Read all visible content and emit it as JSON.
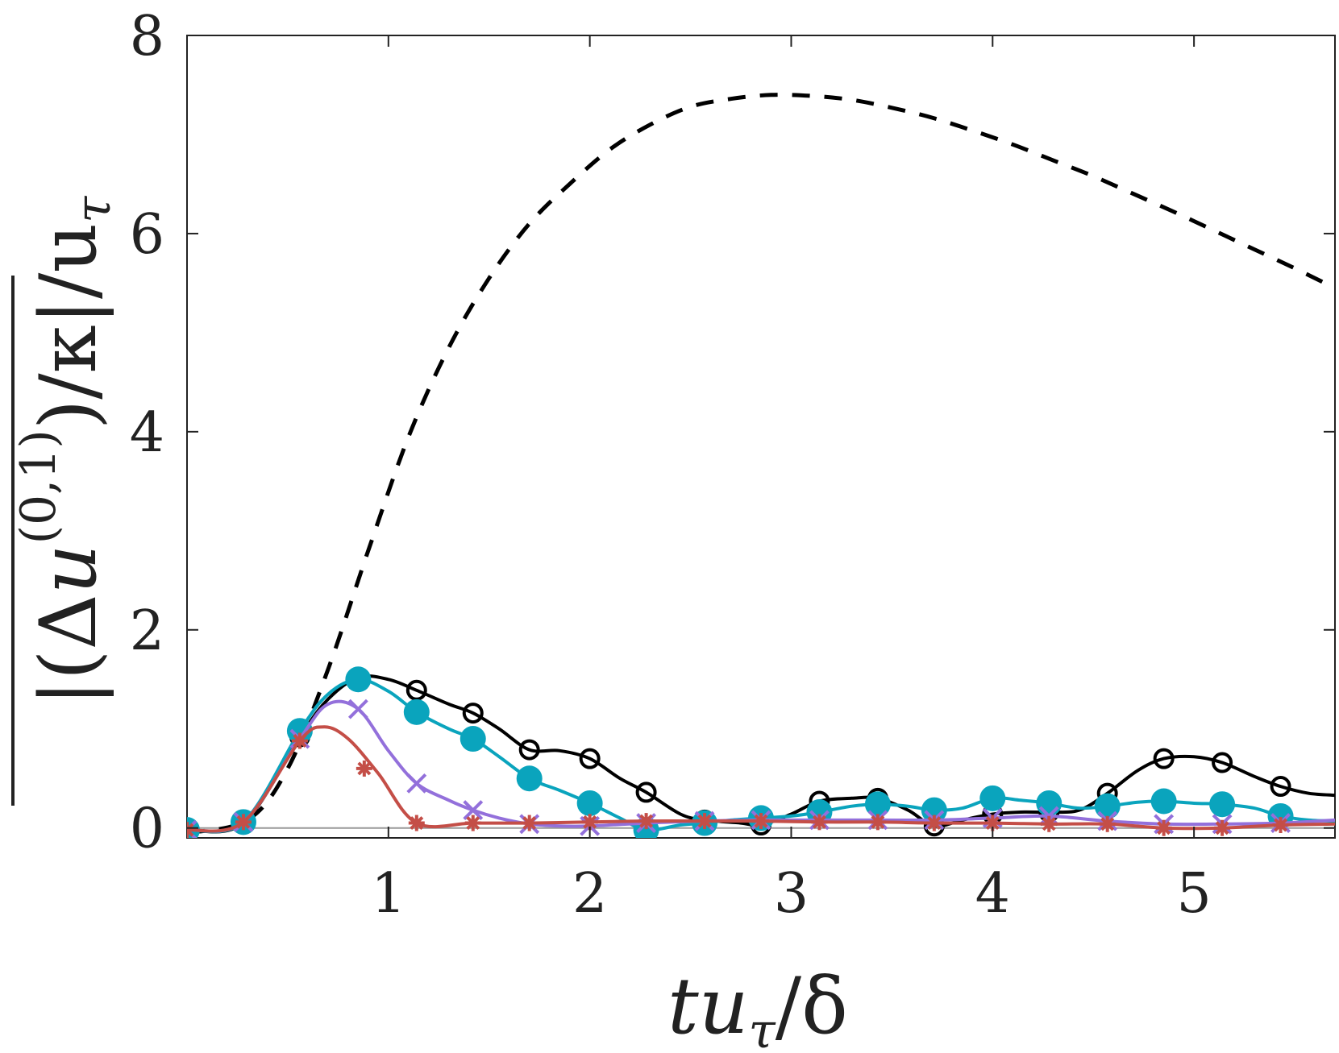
{
  "chart_data": {
    "type": "line",
    "title": "",
    "xlabel": "tu_τ/δ",
    "ylabel": "|(Δû^(0,1))|/κ|/u_τ",
    "xlabel_parts": {
      "main": "tu",
      "sub": "τ",
      "tail": "/δ"
    },
    "ylabel_parts": {
      "open": "|(Δ",
      "u": "u",
      "hat": "^",
      "sup": "(0,1)",
      "close": ")/κ|/u",
      "sub": "τ"
    },
    "xlim": [
      0,
      5.7
    ],
    "ylim": [
      -0.1,
      8
    ],
    "xticks": [
      1,
      2,
      3,
      4,
      5
    ],
    "yticks": [
      0,
      2,
      4,
      6,
      8
    ],
    "grid": false,
    "baseline": 0,
    "series": [
      {
        "name": "dashed-reference",
        "color": "#000000",
        "dashed": true,
        "marker": "none",
        "x": [
          0,
          0.3,
          0.5,
          0.7,
          0.9,
          1.1,
          1.3,
          1.5,
          1.7,
          1.9,
          2.1,
          2.3,
          2.5,
          2.7,
          2.9,
          3.1,
          3.3,
          3.5,
          3.7,
          3.9,
          4.1,
          4.3,
          4.5,
          4.7,
          4.9,
          5.1,
          5.3,
          5.5,
          5.7
        ],
        "y": [
          -0.05,
          0.08,
          0.6,
          1.6,
          2.8,
          3.95,
          4.85,
          5.55,
          6.1,
          6.5,
          6.85,
          7.1,
          7.28,
          7.36,
          7.4,
          7.39,
          7.35,
          7.27,
          7.17,
          7.04,
          6.9,
          6.74,
          6.58,
          6.4,
          6.22,
          6.03,
          5.84,
          5.65,
          5.45
        ]
      },
      {
        "name": "open-circle-series",
        "color": "#000000",
        "marker": "open-circle",
        "x": [
          0,
          0.28,
          0.56,
          0.7,
          0.85,
          1.0,
          1.14,
          1.3,
          1.42,
          1.55,
          1.7,
          1.85,
          2.0,
          2.15,
          2.28,
          2.45,
          2.57,
          2.75,
          2.85,
          3.0,
          3.14,
          3.3,
          3.43,
          3.58,
          3.71,
          3.85,
          4.0,
          4.14,
          4.28,
          4.43,
          4.57,
          4.72,
          4.85,
          5.0,
          5.14,
          5.3,
          5.43,
          5.57,
          5.7
        ],
        "y": [
          -0.02,
          0.05,
          0.92,
          1.3,
          1.52,
          1.5,
          1.39,
          1.25,
          1.16,
          1.0,
          0.79,
          0.78,
          0.7,
          0.5,
          0.36,
          0.14,
          0.08,
          0.05,
          0.03,
          0.14,
          0.27,
          0.3,
          0.3,
          0.18,
          0.02,
          0.08,
          0.14,
          0.16,
          0.16,
          0.18,
          0.35,
          0.58,
          0.7,
          0.72,
          0.66,
          0.52,
          0.42,
          0.35,
          0.33
        ],
        "markers_x": [
          0,
          0.28,
          0.56,
          0.85,
          1.14,
          1.42,
          1.7,
          2.0,
          2.28,
          2.57,
          2.85,
          3.14,
          3.43,
          3.71,
          4.0,
          4.28,
          4.57,
          4.85,
          5.14,
          5.43
        ],
        "markers_y": [
          -0.02,
          0.05,
          0.92,
          1.52,
          1.39,
          1.16,
          0.79,
          0.7,
          0.36,
          0.08,
          0.03,
          0.27,
          0.3,
          0.02,
          0.14,
          0.16,
          0.35,
          0.7,
          0.66,
          0.42
        ]
      },
      {
        "name": "filled-circle-series",
        "color": "#0aa4bd",
        "marker": "filled-circle",
        "x": [
          0,
          0.28,
          0.56,
          0.7,
          0.85,
          1.0,
          1.14,
          1.3,
          1.42,
          1.55,
          1.7,
          1.85,
          2.0,
          2.15,
          2.28,
          2.45,
          2.57,
          2.7,
          2.85,
          3.0,
          3.14,
          3.3,
          3.43,
          3.58,
          3.71,
          3.85,
          4.0,
          4.14,
          4.28,
          4.43,
          4.57,
          4.72,
          4.85,
          5.0,
          5.14,
          5.3,
          5.43,
          5.57,
          5.7
        ],
        "y": [
          -0.02,
          0.06,
          0.98,
          1.35,
          1.5,
          1.38,
          1.17,
          1.0,
          0.9,
          0.72,
          0.5,
          0.38,
          0.25,
          0.1,
          -0.02,
          0.03,
          0.05,
          0.08,
          0.1,
          0.12,
          0.16,
          0.22,
          0.24,
          0.22,
          0.18,
          0.2,
          0.3,
          0.28,
          0.25,
          0.2,
          0.22,
          0.26,
          0.27,
          0.25,
          0.24,
          0.2,
          0.12,
          0.08,
          0.07
        ],
        "markers_x": [
          0,
          0.28,
          0.56,
          0.85,
          1.14,
          1.42,
          1.7,
          2.0,
          2.28,
          2.57,
          2.85,
          3.14,
          3.43,
          3.71,
          4.0,
          4.28,
          4.57,
          4.85,
          5.14,
          5.43
        ],
        "markers_y": [
          -0.02,
          0.06,
          0.98,
          1.5,
          1.17,
          0.9,
          0.5,
          0.25,
          -0.02,
          0.05,
          0.1,
          0.16,
          0.24,
          0.18,
          0.3,
          0.25,
          0.22,
          0.27,
          0.24,
          0.12
        ]
      },
      {
        "name": "cross-series",
        "color": "#9370db",
        "marker": "cross",
        "x": [
          0,
          0.28,
          0.56,
          0.7,
          0.85,
          1.0,
          1.14,
          1.3,
          1.42,
          1.55,
          1.7,
          1.85,
          2.0,
          2.28,
          2.57,
          2.85,
          3.14,
          3.43,
          3.71,
          4.0,
          4.28,
          4.57,
          4.85,
          5.14,
          5.43,
          5.7
        ],
        "y": [
          -0.02,
          0.06,
          0.9,
          1.25,
          1.2,
          0.78,
          0.45,
          0.28,
          0.18,
          0.1,
          0.04,
          0.02,
          0.02,
          0.05,
          0.07,
          0.08,
          0.08,
          0.08,
          0.08,
          0.1,
          0.12,
          0.07,
          0.04,
          0.04,
          0.05,
          0.08
        ],
        "markers_x": [
          0,
          0.28,
          0.56,
          0.85,
          1.14,
          1.42,
          1.7,
          2.0,
          2.28,
          2.57,
          2.85,
          3.14,
          3.43,
          3.71,
          4.0,
          4.28,
          4.57,
          4.85,
          5.14,
          5.43
        ],
        "markers_y": [
          -0.02,
          0.06,
          0.9,
          1.2,
          0.45,
          0.18,
          0.04,
          0.02,
          0.05,
          0.07,
          0.08,
          0.08,
          0.08,
          0.08,
          0.1,
          0.12,
          0.07,
          0.04,
          0.04,
          0.05
        ]
      },
      {
        "name": "asterisk-series",
        "color": "#c44e47",
        "marker": "asterisk",
        "x": [
          0,
          0.28,
          0.56,
          0.68,
          0.8,
          0.95,
          1.14,
          1.42,
          1.7,
          2.0,
          2.28,
          2.57,
          2.85,
          3.14,
          3.43,
          3.71,
          4.0,
          4.28,
          4.57,
          4.85,
          5.14,
          5.43,
          5.7
        ],
        "y": [
          -0.02,
          0.06,
          0.88,
          1.02,
          0.9,
          0.55,
          0.05,
          0.05,
          0.05,
          0.06,
          0.07,
          0.07,
          0.07,
          0.06,
          0.06,
          0.05,
          0.05,
          0.04,
          0.04,
          0.0,
          0.0,
          0.03,
          0.04
        ],
        "markers_x": [
          0,
          0.28,
          0.56,
          0.88,
          1.14,
          1.42,
          1.7,
          2.0,
          2.28,
          2.57,
          2.85,
          3.14,
          3.43,
          3.71,
          4.0,
          4.28,
          4.57,
          4.85,
          5.14,
          5.43
        ],
        "markers_y": [
          -0.02,
          0.06,
          0.88,
          0.6,
          0.05,
          0.05,
          0.05,
          0.06,
          0.07,
          0.07,
          0.07,
          0.06,
          0.06,
          0.05,
          0.05,
          0.04,
          0.04,
          0.0,
          0.0,
          0.03
        ]
      }
    ]
  }
}
